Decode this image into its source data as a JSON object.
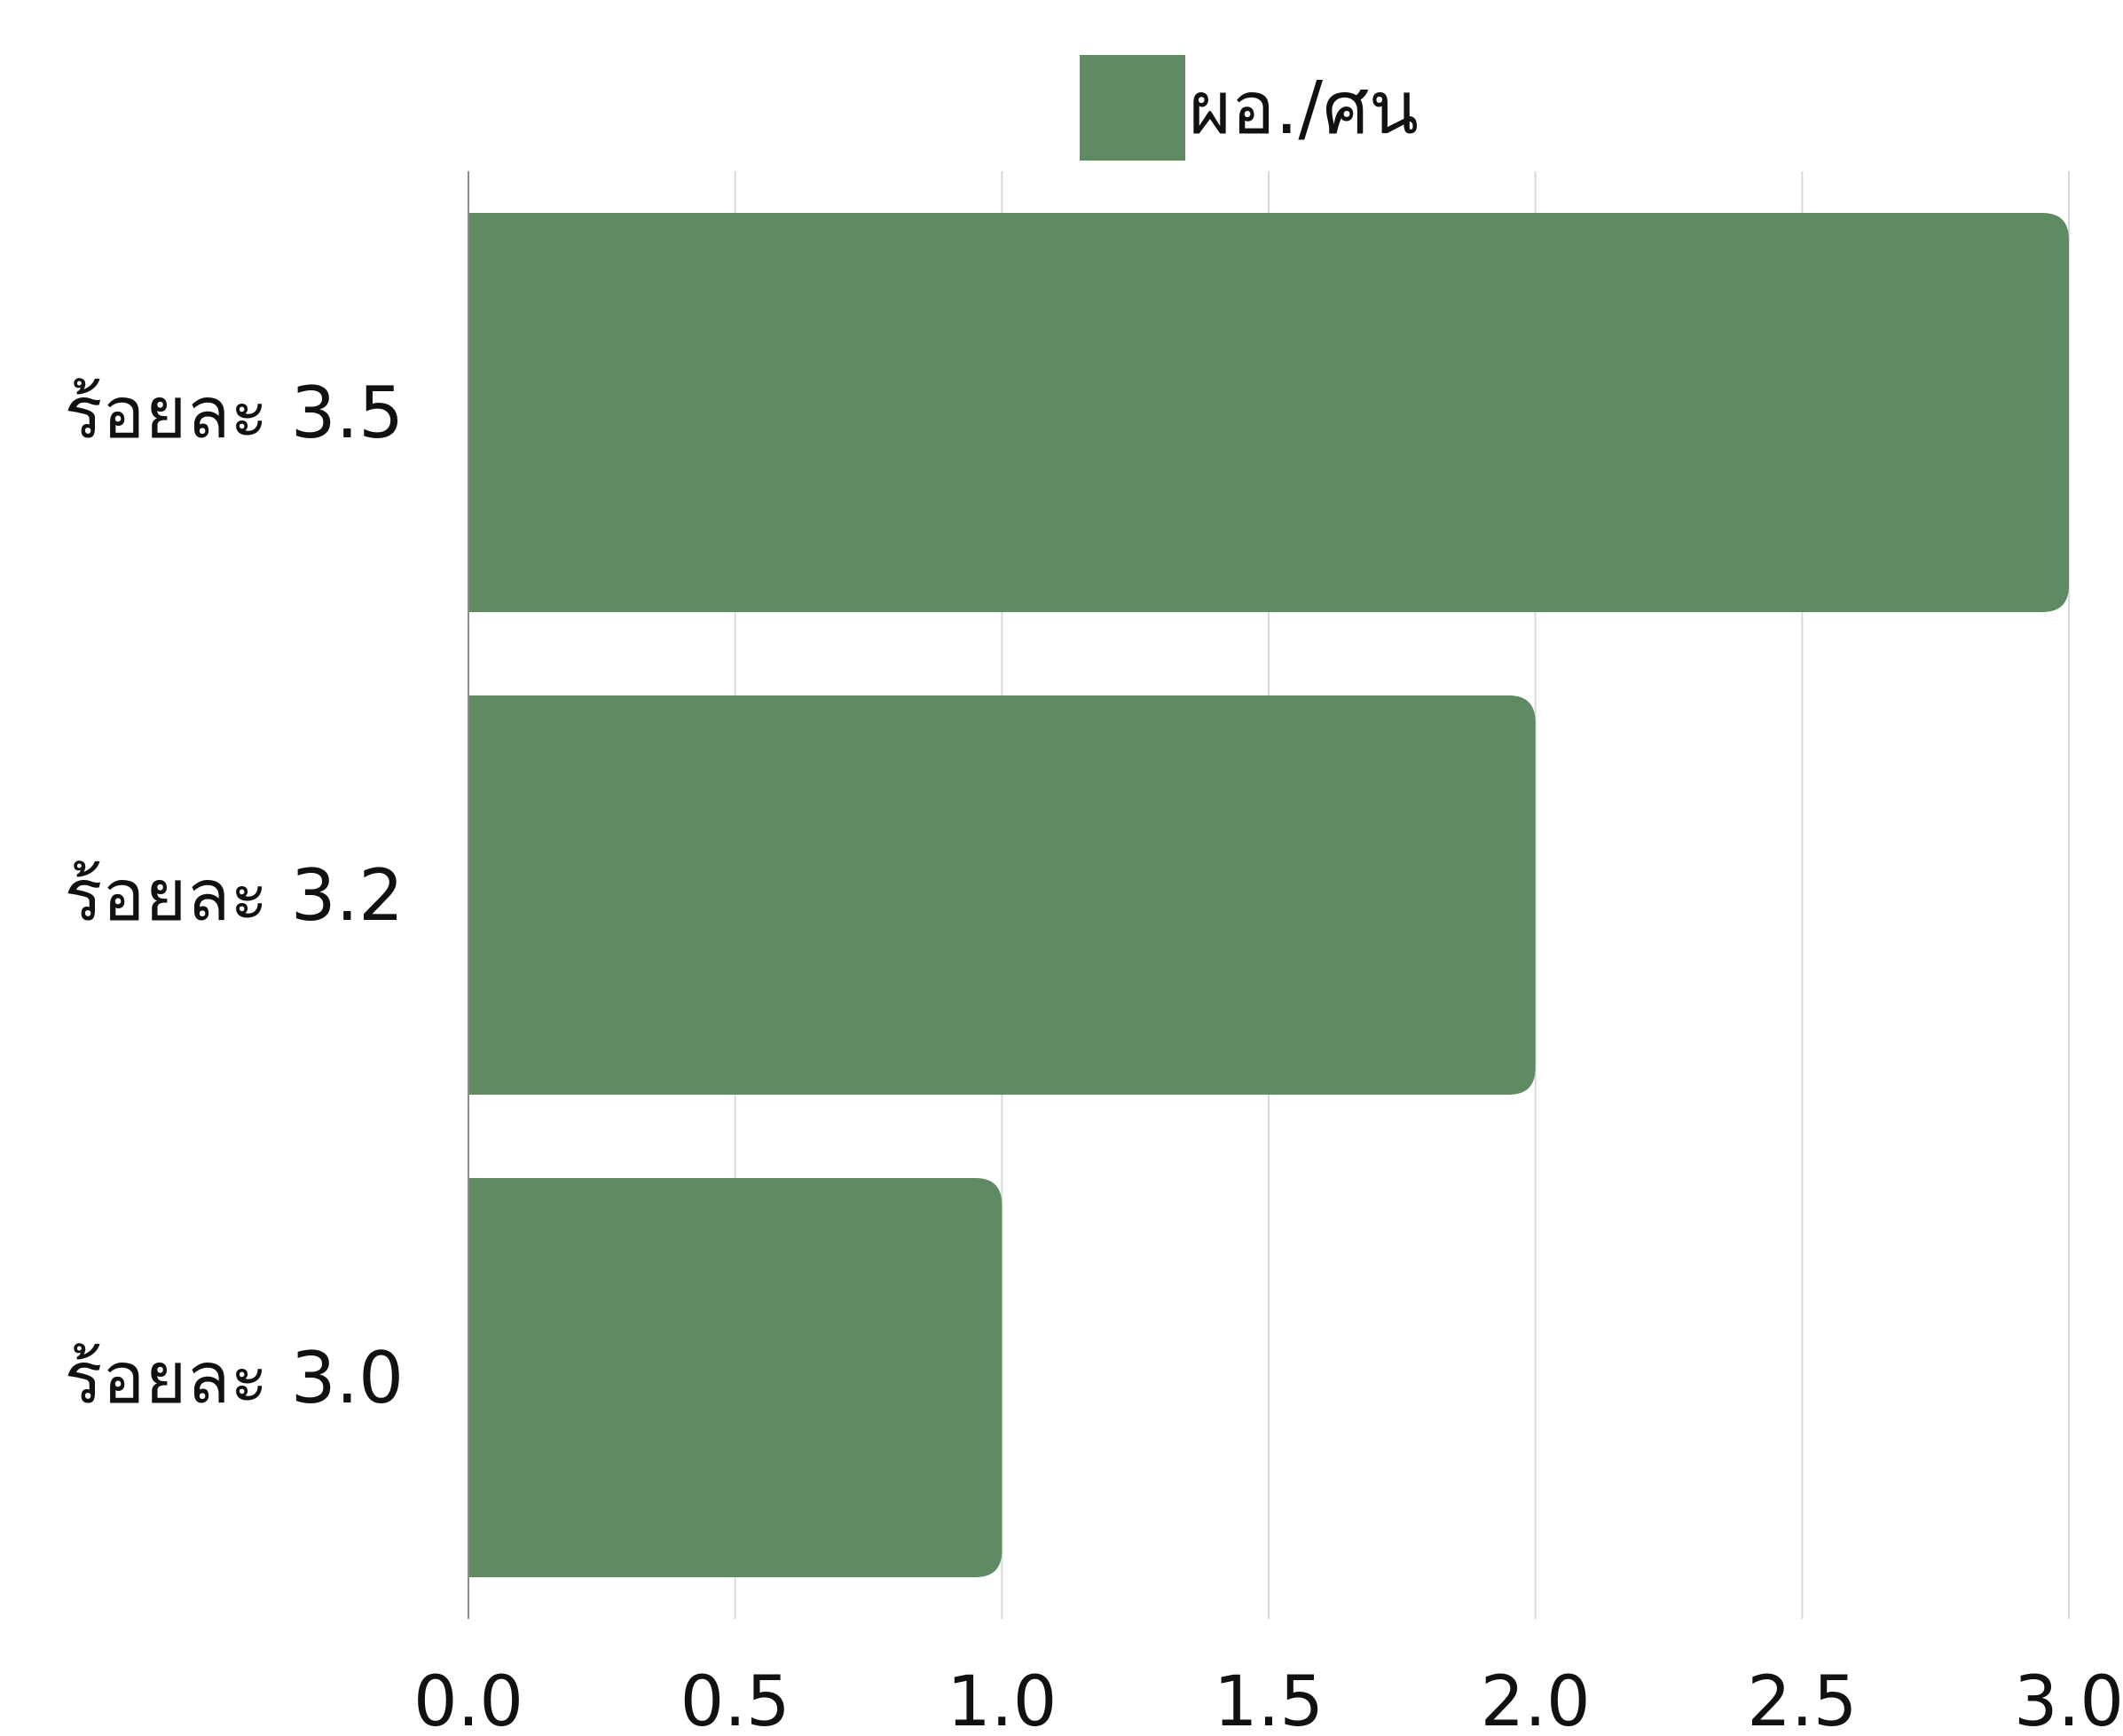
{
  "chart_data": {
    "type": "bar",
    "orientation": "horizontal",
    "categories": [
      "ร้อยละ 3.5",
      "ร้อยละ 3.2",
      "ร้อยละ 3.0"
    ],
    "series": [
      {
        "name": "ผอ./ศน",
        "values": [
          3.0,
          2.0,
          1.0
        ],
        "color": "#5e8b62"
      }
    ],
    "title": "",
    "xlabel": "",
    "ylabel": "",
    "xlim": [
      0,
      3.0
    ],
    "xticks": [
      "0.0",
      "0.5",
      "1.0",
      "1.5",
      "2.0",
      "2.5",
      "3.0"
    ],
    "grid": "vertical",
    "legend_position": "top-center"
  }
}
